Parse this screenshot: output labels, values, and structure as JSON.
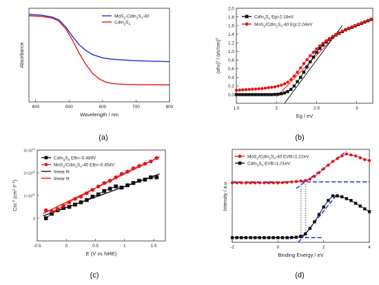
{
  "chart_data": [
    {
      "panel": "(a)",
      "type": "line",
      "xlabel": "Wavelength / nm",
      "ylabel": "Absorbance",
      "xlim": [
        380,
        800
      ],
      "ylim": [
        0,
        1
      ],
      "xticks": [
        400,
        500,
        600,
        700,
        800
      ],
      "yticks_shown": false,
      "grid": false,
      "legend_position": "top-right",
      "series": [
        {
          "name": "MoS2-CdIn2S4-40",
          "color": "#1a2fd6",
          "marker": "none",
          "x": [
            380,
            420,
            450,
            470,
            490,
            510,
            530,
            550,
            570,
            600,
            630,
            660,
            700,
            740,
            800
          ],
          "y": [
            0.935,
            0.925,
            0.905,
            0.875,
            0.8,
            0.7,
            0.61,
            0.55,
            0.505,
            0.47,
            0.455,
            0.448,
            0.44,
            0.435,
            0.43
          ]
        },
        {
          "name": "CdIn2S4",
          "color": "#e81414",
          "marker": "none",
          "x": [
            380,
            420,
            450,
            470,
            490,
            510,
            530,
            550,
            570,
            590,
            610,
            630,
            650,
            680,
            720,
            800
          ],
          "y": [
            0.92,
            0.912,
            0.895,
            0.86,
            0.78,
            0.66,
            0.52,
            0.4,
            0.305,
            0.245,
            0.21,
            0.195,
            0.19,
            0.185,
            0.183,
            0.182
          ]
        }
      ]
    },
    {
      "panel": "(b)",
      "type": "scatter",
      "xlabel": "Eg / eV",
      "ylabel": "(αhν)² / (eV/cm)²",
      "xlim": [
        1.5,
        3.2
      ],
      "ylim": [
        -0.2,
        2.0
      ],
      "xticks": [
        1.5,
        2.0,
        2.5,
        3.0
      ],
      "yticks": [
        0.0,
        0.2,
        0.4,
        0.6,
        0.8,
        1.0,
        1.2,
        1.4,
        1.6,
        1.8,
        2.0
      ],
      "grid": false,
      "legend_position": "top-left",
      "series": [
        {
          "name": "CdIn2S4 Eg=2.18eV",
          "color": "#111111",
          "marker": "square",
          "x": [
            1.5,
            1.54,
            1.58,
            1.62,
            1.66,
            1.7,
            1.74,
            1.78,
            1.82,
            1.86,
            1.9,
            1.94,
            1.98,
            2.02,
            2.06,
            2.1,
            2.14,
            2.18,
            2.22,
            2.26,
            2.3,
            2.34,
            2.38,
            2.42,
            2.46,
            2.5,
            2.54,
            2.58,
            2.62,
            2.66,
            2.7,
            2.74,
            2.78,
            2.82,
            2.86,
            2.9,
            2.94,
            2.98,
            3.02,
            3.06,
            3.1,
            3.14,
            3.18
          ],
          "y": [
            0.0,
            0.0,
            0.0,
            0.0,
            0.0,
            0.0,
            0.0,
            0.0,
            0.0,
            0.0,
            0.0,
            0.0,
            0.005,
            0.01,
            0.02,
            0.04,
            0.07,
            0.12,
            0.2,
            0.3,
            0.4,
            0.52,
            0.64,
            0.76,
            0.87,
            0.98,
            1.07,
            1.15,
            1.22,
            1.28,
            1.33,
            1.38,
            1.42,
            1.46,
            1.5,
            1.53,
            1.56,
            1.59,
            1.62,
            1.65,
            1.68,
            1.71,
            1.74
          ]
        },
        {
          "name": "MoS2/CdIn2S4-40 Eg=2.04eV",
          "color": "#e81414",
          "marker": "circle",
          "x": [
            1.5,
            1.54,
            1.58,
            1.62,
            1.66,
            1.7,
            1.74,
            1.78,
            1.82,
            1.86,
            1.9,
            1.94,
            1.98,
            2.02,
            2.06,
            2.1,
            2.14,
            2.18,
            2.22,
            2.26,
            2.3,
            2.34,
            2.38,
            2.42,
            2.46,
            2.5,
            2.54,
            2.58,
            2.62,
            2.66,
            2.7,
            2.74,
            2.78,
            2.82,
            2.86,
            2.9,
            2.94,
            2.98,
            3.02,
            3.06,
            3.1,
            3.14,
            3.18
          ],
          "y": [
            0.1,
            0.105,
            0.11,
            0.115,
            0.12,
            0.125,
            0.13,
            0.135,
            0.14,
            0.15,
            0.16,
            0.17,
            0.18,
            0.2,
            0.22,
            0.25,
            0.29,
            0.35,
            0.43,
            0.52,
            0.62,
            0.72,
            0.81,
            0.9,
            0.98,
            1.06,
            1.13,
            1.19,
            1.25,
            1.3,
            1.35,
            1.39,
            1.43,
            1.47,
            1.51,
            1.54,
            1.57,
            1.6,
            1.63,
            1.66,
            1.69,
            1.72,
            1.75
          ]
        }
      ],
      "fit_lines": [
        {
          "color": "#111111",
          "x": [
            2.1,
            2.82
          ],
          "y": [
            -0.2,
            1.6
          ]
        },
        {
          "color": "#e81414",
          "x": [
            2.0,
            2.78
          ],
          "y": [
            -0.05,
            1.45
          ]
        }
      ]
    },
    {
      "panel": "(c)",
      "type": "scatter",
      "xlabel": "E (V vs NHE)",
      "ylabel": "Csc⁻² (cm⁴ F⁻²)",
      "xlim": [
        -0.5,
        1.7
      ],
      "ylim": [
        -10000000000.0,
        30000000000.0
      ],
      "xticks": [
        -0.5,
        0.0,
        0.5,
        1.0,
        1.5
      ],
      "ytick_values": [
        0,
        10000000000.0,
        20000000000.0,
        30000000000.0
      ],
      "ytick_labels": [
        "0",
        "1×10¹⁰",
        "2×10¹⁰",
        "3×10¹⁰"
      ],
      "grid": false,
      "legend_position": "top-left",
      "series": [
        {
          "name": "CdIn2S4 Efb=-0.489V",
          "color": "#111111",
          "marker": "square",
          "x": [
            -0.35,
            -0.25,
            -0.15,
            -0.05,
            0.05,
            0.15,
            0.25,
            0.35,
            0.45,
            0.55,
            0.65,
            0.75,
            0.85,
            0.95,
            1.05,
            1.15,
            1.25,
            1.35,
            1.45,
            1.55
          ],
          "y": [
            0.0,
            2000000000.0,
            3500000000.0,
            4500000000.0,
            5000000000.0,
            6000000000.0,
            7000000000.0,
            8000000000.0,
            9500000000.0,
            10500000000.0,
            12000000000.0,
            13000000000.0,
            14000000000.0,
            13500000000.0,
            14500000000.0,
            15500000000.0,
            16500000000.0,
            17000000000.0,
            18000000000.0,
            18000000000.0
          ]
        },
        {
          "name": "MoS2/CdIn2S4-40 Efb=-0.454V",
          "color": "#e81414",
          "marker": "circle",
          "x": [
            -0.35,
            -0.25,
            -0.15,
            -0.05,
            0.05,
            0.15,
            0.25,
            0.35,
            0.45,
            0.55,
            0.65,
            0.75,
            0.85,
            0.95,
            1.05,
            1.15,
            1.25,
            1.35,
            1.45,
            1.55
          ],
          "y": [
            3500000000.0,
            3000000000.0,
            4000000000.0,
            5500000000.0,
            7000000000.0,
            8500000000.0,
            9500000000.0,
            11000000000.0,
            12500000000.0,
            14000000000.0,
            15500000000.0,
            16500000000.0,
            18000000000.0,
            19500000000.0,
            20500000000.0,
            22000000000.0,
            23000000000.0,
            24000000000.0,
            25000000000.0,
            26500000000.0
          ]
        },
        {
          "name": "linear fit",
          "color": "#111111",
          "marker": "none",
          "x": [
            -0.4,
            1.6
          ],
          "y": [
            1000000000.0,
            19500000000.0
          ]
        },
        {
          "name": "linear fit",
          "color": "#e81414",
          "marker": "none",
          "x": [
            -0.4,
            1.6
          ],
          "y": [
            2000000000.0,
            27000000000.0
          ]
        }
      ]
    },
    {
      "panel": "(d)",
      "type": "scatter",
      "xlabel": "Binding Energy / eV",
      "ylabel": "Intensity / a.u.",
      "xlim": [
        -2,
        4
      ],
      "ylim": [
        0,
        1
      ],
      "xticks": [
        -2,
        0,
        2,
        4
      ],
      "yticks_shown": false,
      "grid": false,
      "legend_position": "top-left",
      "series": [
        {
          "name": "MoS2/CdIn2S4-40 EVB=1.22eV",
          "color": "#e81414",
          "marker": "circle",
          "x": [
            -2.0,
            -1.8,
            -1.6,
            -1.4,
            -1.2,
            -1.0,
            -0.8,
            -0.6,
            -0.4,
            -0.2,
            0.0,
            0.2,
            0.4,
            0.6,
            0.8,
            1.0,
            1.2,
            1.4,
            1.6,
            1.8,
            2.0,
            2.2,
            2.4,
            2.6,
            2.8,
            3.0,
            3.2,
            3.4,
            3.6,
            3.8,
            4.0
          ],
          "y": [
            0.64,
            0.64,
            0.64,
            0.64,
            0.64,
            0.64,
            0.64,
            0.64,
            0.64,
            0.64,
            0.64,
            0.642,
            0.645,
            0.65,
            0.655,
            0.66,
            0.665,
            0.68,
            0.71,
            0.75,
            0.79,
            0.83,
            0.87,
            0.9,
            0.93,
            0.95,
            0.94,
            0.93,
            0.91,
            0.89,
            0.88
          ]
        },
        {
          "name": "CdIn2S4 EVB=1.01eV",
          "color": "#111111",
          "marker": "square",
          "x": [
            -2.0,
            -1.8,
            -1.6,
            -1.4,
            -1.2,
            -1.0,
            -0.8,
            -0.6,
            -0.4,
            -0.2,
            0.0,
            0.2,
            0.4,
            0.6,
            0.8,
            1.0,
            1.2,
            1.4,
            1.6,
            1.8,
            2.0,
            2.2,
            2.4,
            2.6,
            2.8,
            3.0,
            3.2,
            3.4,
            3.6,
            3.8,
            4.0
          ],
          "y": [
            0.05,
            0.05,
            0.05,
            0.05,
            0.05,
            0.05,
            0.05,
            0.05,
            0.05,
            0.05,
            0.05,
            0.05,
            0.05,
            0.052,
            0.055,
            0.065,
            0.09,
            0.15,
            0.22,
            0.3,
            0.38,
            0.45,
            0.5,
            0.5,
            0.49,
            0.47,
            0.45,
            0.42,
            0.39,
            0.36,
            0.33
          ]
        }
      ],
      "fit_lines": [
        {
          "color": "#1a2fd6",
          "style": "dashed",
          "x": [
            -2.0,
            4.0
          ],
          "y": [
            0.65,
            0.65
          ]
        },
        {
          "color": "#1a2fd6",
          "style": "dashed",
          "x": [
            0.8,
            3.0
          ],
          "y": [
            0.58,
            0.98
          ]
        },
        {
          "color": "#1a2fd6",
          "style": "dashed",
          "x": [
            -1.8,
            2.0
          ],
          "y": [
            0.05,
            0.05
          ]
        },
        {
          "color": "#1a2fd6",
          "style": "dashed",
          "x": [
            0.9,
            2.6
          ],
          "y": [
            0.0,
            0.52
          ]
        },
        {
          "color": "#111111",
          "style": "dotted",
          "x": [
            1.01,
            1.01
          ],
          "y": [
            0.05,
            0.66
          ]
        },
        {
          "color": "#111111",
          "style": "dotted",
          "x": [
            1.22,
            1.22
          ],
          "y": [
            0.05,
            0.66
          ]
        }
      ]
    }
  ]
}
